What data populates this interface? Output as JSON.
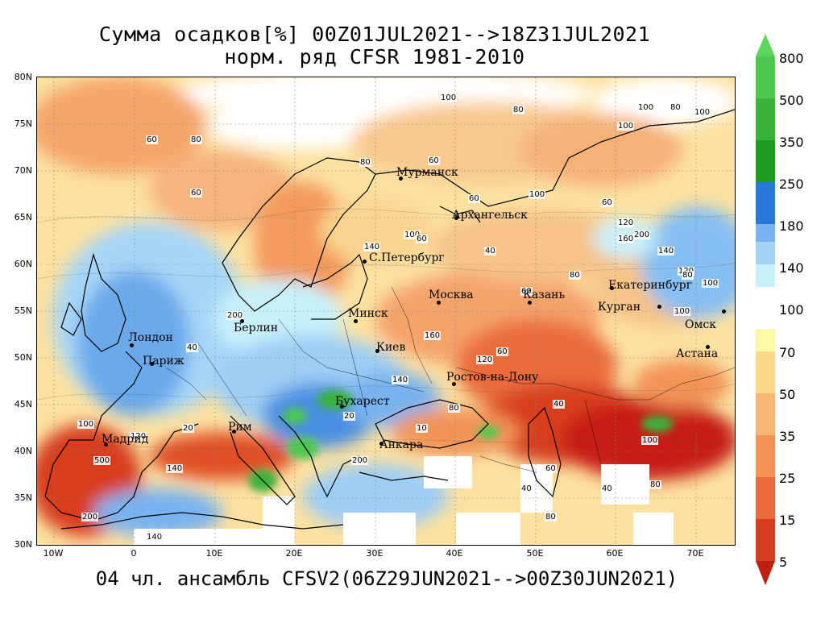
{
  "title": {
    "line1": "Сумма осадков[%] 00Z01JUL2021-->18Z31JUL2021",
    "line2": "норм. ряд CFSR 1981-2010"
  },
  "footer": "04 чл. ансамбль CFSV2(06Z29JUN2021-->00Z30JUN2021)",
  "axes": {
    "latitudes": [
      "80N",
      "75N",
      "70N",
      "65N",
      "60N",
      "55N",
      "50N",
      "45N",
      "40N",
      "35N",
      "30N"
    ],
    "longitudes": [
      "10W",
      "0",
      "10E",
      "20E",
      "30E",
      "40E",
      "50E",
      "60E",
      "70E"
    ]
  },
  "colorbar": {
    "labels": [
      "800",
      "500",
      "350",
      "250",
      "180",
      "140",
      "100",
      "70",
      "50",
      "35",
      "25",
      "15",
      "5"
    ],
    "colors_top": [
      "#4ec94e",
      "#3bb33b",
      "#1e9a1e",
      "#2878dc",
      "#4f96e6",
      "#78b3f0",
      "#a5d3f7",
      "#c8f0fb"
    ],
    "colors_bottom": [
      "#fbf8a6",
      "#fbd989",
      "#f7b474",
      "#f29456",
      "#ea6c3c",
      "#d83c1e",
      "#c01e10"
    ]
  },
  "cities": [
    {
      "name": "Мурманск"
    },
    {
      "name": "Архангельск"
    },
    {
      "name": "С.Петербург"
    },
    {
      "name": "Москва"
    },
    {
      "name": "Казань"
    },
    {
      "name": "Екатеринбург"
    },
    {
      "name": "Курган"
    },
    {
      "name": "Омск"
    },
    {
      "name": "Астана"
    },
    {
      "name": "Минск"
    },
    {
      "name": "Киев"
    },
    {
      "name": "Ростов-на-Дону"
    },
    {
      "name": "Берлин"
    },
    {
      "name": "Лондон"
    },
    {
      "name": "Париж"
    },
    {
      "name": "Рим"
    },
    {
      "name": "Мадрид"
    },
    {
      "name": "Бухарест"
    },
    {
      "name": "Анкара"
    }
  ],
  "contour_labels": [
    "100",
    "80",
    "100",
    "80",
    "100",
    "100",
    "60",
    "80",
    "60",
    "80",
    "60",
    "100",
    "60",
    "60",
    "120",
    "160",
    "200",
    "140",
    "120",
    "100",
    "140",
    "100",
    "60",
    "40",
    "80",
    "60",
    "80",
    "100",
    "120",
    "140",
    "160",
    "200",
    "40",
    "20",
    "10",
    "80",
    "100",
    "40",
    "60",
    "80",
    "500",
    "200",
    "140",
    "160",
    "60",
    "80",
    "40",
    "20",
    "100",
    "120",
    "140",
    "200",
    "40"
  ]
}
